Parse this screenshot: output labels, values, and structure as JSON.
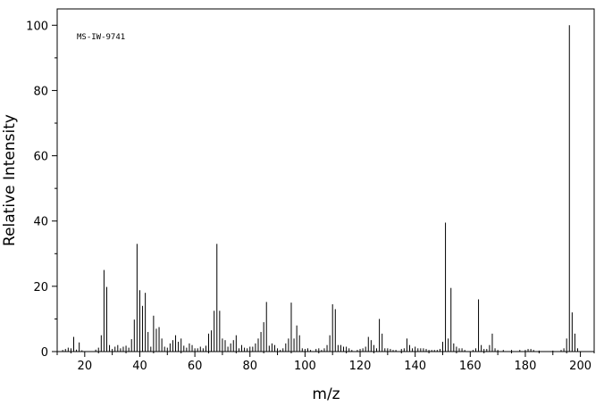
{
  "chart_data": {
    "type": "bar",
    "subtype": "mass-spectrum-stick",
    "annotation": "MS-IW-9741",
    "xlabel": "m/z",
    "ylabel": "Relative Intensity",
    "xlim": [
      10,
      205
    ],
    "ylim": [
      0,
      105
    ],
    "xticks": [
      20,
      40,
      60,
      80,
      100,
      120,
      140,
      160,
      180,
      200
    ],
    "yticks": [
      0,
      20,
      40,
      60,
      80,
      100
    ],
    "grid": false,
    "colors": {
      "bars": "#000000",
      "axes": "#000000"
    },
    "peaks": [
      {
        "x": 12,
        "y": 0.5
      },
      {
        "x": 13,
        "y": 0.8
      },
      {
        "x": 14,
        "y": 1.2
      },
      {
        "x": 15,
        "y": 1.0
      },
      {
        "x": 16,
        "y": 4.5
      },
      {
        "x": 17,
        "y": 0.6
      },
      {
        "x": 18,
        "y": 2.8
      },
      {
        "x": 19,
        "y": 0.4
      },
      {
        "x": 24,
        "y": 0.6
      },
      {
        "x": 25,
        "y": 1.2
      },
      {
        "x": 26,
        "y": 5.0
      },
      {
        "x": 27,
        "y": 25.0
      },
      {
        "x": 28,
        "y": 19.8
      },
      {
        "x": 29,
        "y": 2.0
      },
      {
        "x": 30,
        "y": 0.8
      },
      {
        "x": 31,
        "y": 1.5
      },
      {
        "x": 32,
        "y": 2.0
      },
      {
        "x": 33,
        "y": 1.0
      },
      {
        "x": 34,
        "y": 1.5
      },
      {
        "x": 35,
        "y": 1.8
      },
      {
        "x": 36,
        "y": 1.2
      },
      {
        "x": 37,
        "y": 3.8
      },
      {
        "x": 38,
        "y": 9.8
      },
      {
        "x": 39,
        "y": 33.0
      },
      {
        "x": 40,
        "y": 18.8
      },
      {
        "x": 41,
        "y": 14.0
      },
      {
        "x": 42,
        "y": 18.0
      },
      {
        "x": 43,
        "y": 6.0
      },
      {
        "x": 44,
        "y": 1.5
      },
      {
        "x": 45,
        "y": 11.0
      },
      {
        "x": 46,
        "y": 7.0
      },
      {
        "x": 47,
        "y": 7.5
      },
      {
        "x": 48,
        "y": 4.0
      },
      {
        "x": 49,
        "y": 1.5
      },
      {
        "x": 50,
        "y": 1.2
      },
      {
        "x": 51,
        "y": 2.5
      },
      {
        "x": 52,
        "y": 3.5
      },
      {
        "x": 53,
        "y": 5.0
      },
      {
        "x": 54,
        "y": 3.0
      },
      {
        "x": 55,
        "y": 4.0
      },
      {
        "x": 56,
        "y": 1.8
      },
      {
        "x": 57,
        "y": 1.2
      },
      {
        "x": 58,
        "y": 2.5
      },
      {
        "x": 59,
        "y": 2.0
      },
      {
        "x": 60,
        "y": 1.0
      },
      {
        "x": 61,
        "y": 1.0
      },
      {
        "x": 62,
        "y": 1.5
      },
      {
        "x": 63,
        "y": 1.0
      },
      {
        "x": 64,
        "y": 1.8
      },
      {
        "x": 65,
        "y": 5.5
      },
      {
        "x": 66,
        "y": 6.5
      },
      {
        "x": 67,
        "y": 12.5
      },
      {
        "x": 68,
        "y": 33.0
      },
      {
        "x": 69,
        "y": 12.5
      },
      {
        "x": 70,
        "y": 4.0
      },
      {
        "x": 71,
        "y": 3.5
      },
      {
        "x": 72,
        "y": 1.5
      },
      {
        "x": 73,
        "y": 2.5
      },
      {
        "x": 74,
        "y": 3.5
      },
      {
        "x": 75,
        "y": 5.0
      },
      {
        "x": 76,
        "y": 1.0
      },
      {
        "x": 77,
        "y": 2.0
      },
      {
        "x": 78,
        "y": 1.2
      },
      {
        "x": 79,
        "y": 1.0
      },
      {
        "x": 80,
        "y": 1.5
      },
      {
        "x": 81,
        "y": 1.5
      },
      {
        "x": 82,
        "y": 2.5
      },
      {
        "x": 83,
        "y": 4.0
      },
      {
        "x": 84,
        "y": 6.0
      },
      {
        "x": 85,
        "y": 9.0
      },
      {
        "x": 86,
        "y": 15.2
      },
      {
        "x": 87,
        "y": 1.8
      },
      {
        "x": 88,
        "y": 2.5
      },
      {
        "x": 89,
        "y": 2.0
      },
      {
        "x": 90,
        "y": 1.0
      },
      {
        "x": 91,
        "y": 0.5
      },
      {
        "x": 92,
        "y": 1.0
      },
      {
        "x": 93,
        "y": 2.5
      },
      {
        "x": 94,
        "y": 4.0
      },
      {
        "x": 95,
        "y": 15.0
      },
      {
        "x": 96,
        "y": 4.0
      },
      {
        "x": 97,
        "y": 8.0
      },
      {
        "x": 98,
        "y": 5.0
      },
      {
        "x": 99,
        "y": 1.0
      },
      {
        "x": 100,
        "y": 0.8
      },
      {
        "x": 101,
        "y": 1.0
      },
      {
        "x": 102,
        "y": 0.5
      },
      {
        "x": 104,
        "y": 0.8
      },
      {
        "x": 105,
        "y": 1.0
      },
      {
        "x": 106,
        "y": 0.5
      },
      {
        "x": 107,
        "y": 1.0
      },
      {
        "x": 108,
        "y": 2.0
      },
      {
        "x": 109,
        "y": 5.0
      },
      {
        "x": 110,
        "y": 14.5
      },
      {
        "x": 111,
        "y": 13.0
      },
      {
        "x": 112,
        "y": 2.0
      },
      {
        "x": 113,
        "y": 2.0
      },
      {
        "x": 114,
        "y": 1.5
      },
      {
        "x": 115,
        "y": 1.5
      },
      {
        "x": 116,
        "y": 1.0
      },
      {
        "x": 117,
        "y": 0.5
      },
      {
        "x": 119,
        "y": 0.5
      },
      {
        "x": 120,
        "y": 0.8
      },
      {
        "x": 121,
        "y": 1.0
      },
      {
        "x": 122,
        "y": 1.5
      },
      {
        "x": 123,
        "y": 4.5
      },
      {
        "x": 124,
        "y": 3.5
      },
      {
        "x": 125,
        "y": 2.0
      },
      {
        "x": 126,
        "y": 1.0
      },
      {
        "x": 127,
        "y": 10.0
      },
      {
        "x": 128,
        "y": 5.5
      },
      {
        "x": 129,
        "y": 1.0
      },
      {
        "x": 130,
        "y": 1.0
      },
      {
        "x": 131,
        "y": 0.8
      },
      {
        "x": 132,
        "y": 0.5
      },
      {
        "x": 133,
        "y": 0.5
      },
      {
        "x": 135,
        "y": 0.8
      },
      {
        "x": 136,
        "y": 1.0
      },
      {
        "x": 137,
        "y": 4.0
      },
      {
        "x": 138,
        "y": 2.0
      },
      {
        "x": 139,
        "y": 1.0
      },
      {
        "x": 140,
        "y": 1.5
      },
      {
        "x": 141,
        "y": 1.0
      },
      {
        "x": 142,
        "y": 1.0
      },
      {
        "x": 143,
        "y": 1.0
      },
      {
        "x": 144,
        "y": 0.8
      },
      {
        "x": 145,
        "y": 0.5
      },
      {
        "x": 146,
        "y": 0.5
      },
      {
        "x": 147,
        "y": 0.5
      },
      {
        "x": 148,
        "y": 0.5
      },
      {
        "x": 149,
        "y": 0.8
      },
      {
        "x": 150,
        "y": 3.0
      },
      {
        "x": 151,
        "y": 39.5
      },
      {
        "x": 152,
        "y": 4.0
      },
      {
        "x": 153,
        "y": 19.5
      },
      {
        "x": 154,
        "y": 2.5
      },
      {
        "x": 155,
        "y": 1.5
      },
      {
        "x": 156,
        "y": 1.0
      },
      {
        "x": 157,
        "y": 1.0
      },
      {
        "x": 158,
        "y": 0.5
      },
      {
        "x": 161,
        "y": 0.5
      },
      {
        "x": 162,
        "y": 1.0
      },
      {
        "x": 163,
        "y": 16.0
      },
      {
        "x": 164,
        "y": 2.0
      },
      {
        "x": 165,
        "y": 0.8
      },
      {
        "x": 166,
        "y": 0.8
      },
      {
        "x": 167,
        "y": 2.0
      },
      {
        "x": 168,
        "y": 5.5
      },
      {
        "x": 169,
        "y": 1.0
      },
      {
        "x": 170,
        "y": 0.5
      },
      {
        "x": 172,
        "y": 0.5
      },
      {
        "x": 175,
        "y": 0.5
      },
      {
        "x": 178,
        "y": 0.5
      },
      {
        "x": 180,
        "y": 0.5
      },
      {
        "x": 181,
        "y": 0.8
      },
      {
        "x": 182,
        "y": 0.8
      },
      {
        "x": 183,
        "y": 0.5
      },
      {
        "x": 185,
        "y": 0.3
      },
      {
        "x": 190,
        "y": 0.3
      },
      {
        "x": 193,
        "y": 0.5
      },
      {
        "x": 194,
        "y": 1.0
      },
      {
        "x": 195,
        "y": 4.0
      },
      {
        "x": 196,
        "y": 100.0
      },
      {
        "x": 197,
        "y": 12.0
      },
      {
        "x": 198,
        "y": 5.5
      },
      {
        "x": 199,
        "y": 1.0
      }
    ]
  }
}
